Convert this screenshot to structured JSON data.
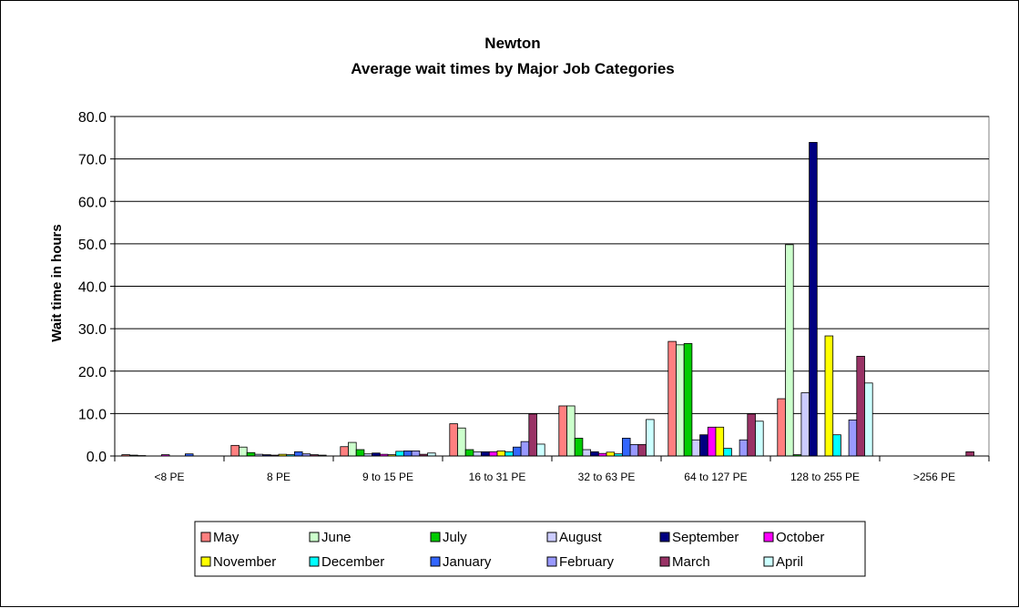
{
  "chart_data": {
    "type": "bar",
    "title_lines": [
      "Newton",
      "Average wait times by Major Job Categories"
    ],
    "ylabel": "Wait time in hours",
    "xlabel": "",
    "ylim": [
      0,
      80
    ],
    "yticks": [
      "0.0",
      "10.0",
      "20.0",
      "30.0",
      "40.0",
      "50.0",
      "60.0",
      "70.0",
      "80.0"
    ],
    "grid": true,
    "legend_position": "bottom",
    "categories": [
      "<8 PE",
      "8 PE",
      "9 to 15 PE",
      "16 to 31 PE",
      "32 to 63 PE",
      "64 to 127 PE",
      "128 to 255 PE",
      ">256 PE"
    ],
    "series": [
      {
        "name": "May",
        "color": "#ff8080",
        "values": [
          0.3,
          2.5,
          2.2,
          7.6,
          11.8,
          27.0,
          13.5,
          0.0
        ]
      },
      {
        "name": "June",
        "color": "#ccffcc",
        "values": [
          0.2,
          2.1,
          3.2,
          6.6,
          11.8,
          26.2,
          49.8,
          0.0
        ]
      },
      {
        "name": "July",
        "color": "#00cc00",
        "values": [
          0.1,
          0.8,
          1.5,
          1.5,
          4.2,
          26.5,
          0.3,
          0.0
        ]
      },
      {
        "name": "August",
        "color": "#ccccff",
        "values": [
          0.0,
          0.4,
          0.5,
          1.0,
          1.5,
          3.8,
          14.9,
          0.0
        ]
      },
      {
        "name": "September",
        "color": "#000080",
        "values": [
          0.0,
          0.3,
          0.7,
          1.0,
          1.0,
          5.0,
          73.9,
          0.0
        ]
      },
      {
        "name": "October",
        "color": "#ff00ff",
        "values": [
          0.3,
          0.2,
          0.4,
          1.0,
          0.6,
          6.8,
          0.0,
          0.0
        ]
      },
      {
        "name": "November",
        "color": "#ffff00",
        "values": [
          0.0,
          0.4,
          0.3,
          1.2,
          0.9,
          6.8,
          28.3,
          0.0
        ]
      },
      {
        "name": "December",
        "color": "#00ffff",
        "values": [
          0.0,
          0.3,
          1.1,
          1.0,
          0.5,
          1.8,
          5.0,
          0.0
        ]
      },
      {
        "name": "January",
        "color": "#3366ff",
        "values": [
          0.5,
          1.0,
          1.2,
          2.1,
          4.2,
          0.0,
          0.0,
          0.0
        ]
      },
      {
        "name": "February",
        "color": "#9999ff",
        "values": [
          0.0,
          0.5,
          1.2,
          3.4,
          2.7,
          3.8,
          8.5,
          0.0
        ]
      },
      {
        "name": "March",
        "color": "#993366",
        "values": [
          0.0,
          0.3,
          0.4,
          9.9,
          2.7,
          9.9,
          23.5,
          1.0
        ]
      },
      {
        "name": "April",
        "color": "#ccffff",
        "values": [
          0.0,
          0.2,
          0.7,
          2.8,
          8.6,
          8.2,
          17.2,
          0.0
        ]
      }
    ]
  }
}
